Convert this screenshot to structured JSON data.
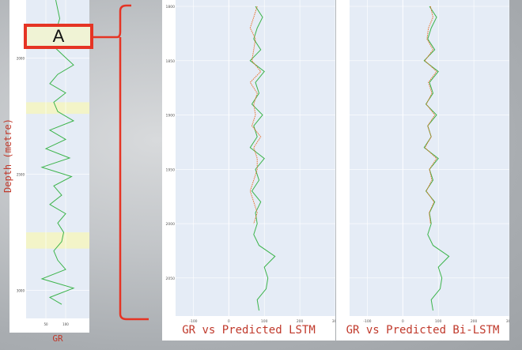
{
  "left_plot": {
    "ylabel": "Depth (metre)",
    "xlabel": "GR",
    "annotation": "A"
  },
  "lstm_plot": {
    "xlabel": "GR vs Predicted LSTM"
  },
  "bilstm_plot": {
    "xlabel": "GR vs Predicted Bi-LSTM"
  },
  "colors": {
    "actual": "#3cb44b",
    "predicted": "#e8712a",
    "plot_bg": "#e5ecf6",
    "highlight": "#f3f4c8",
    "bracket": "#e53424",
    "label": "#c0392b"
  },
  "chart_data": [
    {
      "type": "line",
      "title": "",
      "xlabel": "GR",
      "ylabel": "Depth (metre)",
      "xlim": [
        0,
        160
      ],
      "ylim": [
        3100,
        1750
      ],
      "x_ticks": [
        50,
        100
      ],
      "y_ticks": [
        2000,
        2500,
        3000
      ],
      "highlight_ranges": [
        [
          2190,
          2240
        ],
        [
          2750,
          2820
        ]
      ],
      "series": [
        {
          "depth": [
            1750,
            1790,
            1830,
            1870,
            1910,
            1950,
            1990,
            2030,
            2070,
            2110,
            2150,
            2190,
            2230,
            2270,
            2310,
            2350,
            2390,
            2430,
            2470,
            2510,
            2550,
            2590,
            2630,
            2670,
            2710,
            2750,
            2790,
            2830,
            2870,
            2910,
            2950,
            2990,
            3030,
            3060
          ],
          "values": [
            75,
            80,
            85,
            78,
            90,
            70,
            95,
            120,
            80,
            60,
            100,
            70,
            80,
            120,
            60,
            100,
            50,
            110,
            40,
            115,
            70,
            90,
            60,
            100,
            80,
            95,
            90,
            70,
            80,
            100,
            40,
            120,
            60,
            90
          ]
        }
      ]
    },
    {
      "type": "line",
      "title": "",
      "xlabel": "GR vs Predicted LSTM",
      "xlim": [
        -150,
        300
      ],
      "ylim": [
        2085,
        1800
      ],
      "x_ticks": [
        -100,
        0,
        100,
        200,
        300
      ],
      "y_ticks": [
        1800,
        1850,
        1900,
        1950,
        2000,
        2050
      ],
      "series": [
        {
          "depth": [
            1800,
            1810,
            1820,
            1830,
            1840,
            1850,
            1860,
            1870,
            1880,
            1890,
            1900,
            1910,
            1920,
            1930,
            1940,
            1950,
            1960,
            1970,
            1980,
            1990,
            2000,
            2010,
            2020,
            2030,
            2040,
            2050,
            2060,
            2070,
            2080
          ],
          "values": [
            75,
            95,
            80,
            70,
            90,
            60,
            100,
            75,
            85,
            65,
            95,
            70,
            80,
            60,
            100,
            75,
            85,
            65,
            90,
            75,
            80,
            70,
            85,
            130,
            100,
            110,
            105,
            80,
            85
          ]
        },
        {
          "depth": [
            1800,
            1810,
            1820,
            1830,
            1840,
            1850,
            1860,
            1870,
            1880,
            1890,
            1900,
            1910,
            1920,
            1930,
            1940,
            1950,
            1960,
            1970,
            1980,
            1990,
            2000
          ],
          "values": [
            80,
            70,
            60,
            75,
            70,
            65,
            90,
            60,
            80,
            70,
            75,
            65,
            90,
            70,
            80,
            80,
            70,
            60,
            70,
            80,
            70
          ]
        }
      ]
    },
    {
      "type": "line",
      "title": "",
      "xlabel": "GR vs Predicted Bi-LSTM",
      "xlim": [
        -150,
        300
      ],
      "ylim": [
        2085,
        1800
      ],
      "x_ticks": [
        -100,
        0,
        100,
        200,
        300
      ],
      "series": [
        {
          "depth": [
            1800,
            1810,
            1820,
            1830,
            1840,
            1850,
            1860,
            1870,
            1880,
            1890,
            1900,
            1910,
            1920,
            1930,
            1940,
            1950,
            1960,
            1970,
            1980,
            1990,
            2000,
            2010,
            2020,
            2030,
            2040,
            2050,
            2060,
            2070,
            2080
          ],
          "values": [
            75,
            95,
            80,
            70,
            90,
            60,
            100,
            75,
            85,
            65,
            95,
            70,
            80,
            60,
            100,
            75,
            85,
            65,
            90,
            75,
            80,
            70,
            85,
            130,
            100,
            110,
            105,
            80,
            85
          ]
        },
        {
          "depth": [
            1800,
            1810,
            1820,
            1830,
            1840,
            1850,
            1860,
            1870,
            1880,
            1890,
            1900,
            1910,
            1920,
            1930,
            1940,
            1950,
            1960,
            1970,
            1980,
            1990,
            2000
          ],
          "values": [
            78,
            85,
            72,
            68,
            85,
            62,
            95,
            72,
            82,
            66,
            90,
            70,
            80,
            62,
            95,
            75,
            82,
            66,
            88,
            74,
            78
          ]
        }
      ]
    }
  ]
}
